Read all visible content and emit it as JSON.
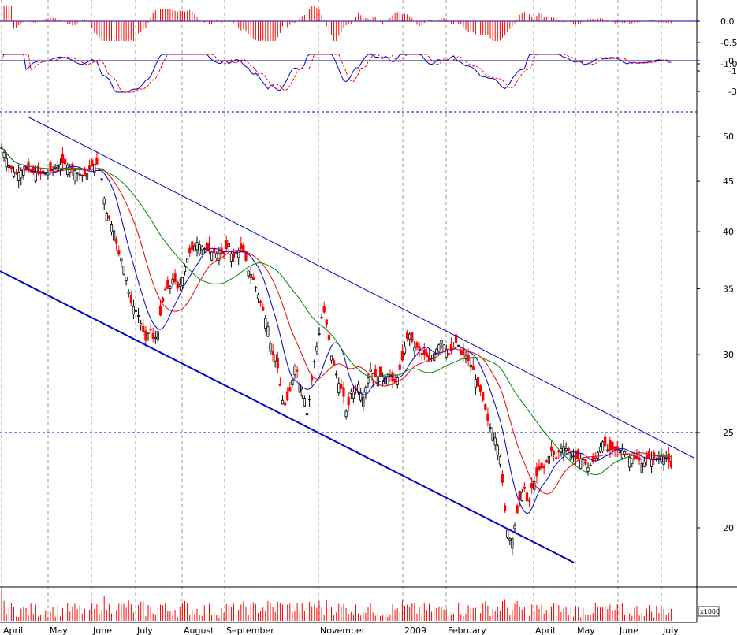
{
  "chart_data": {
    "type": "candlestick",
    "colors": {
      "up": "#000000",
      "down": "#ff0000",
      "ma_fast": "#0000cc",
      "ma_mid": "#ee0000",
      "ma_slow": "#008800",
      "channel": "#0000cc",
      "macd_line": "#0000cc",
      "signal_line": "#ff0000",
      "hist": "#ff0000",
      "volume": "#ff0000",
      "grid": "#999999"
    },
    "months": [
      "April",
      "May",
      "June",
      "July",
      "August",
      "September",
      "November",
      "2009",
      "February",
      "April",
      "May",
      "June",
      "July"
    ],
    "price_axis": {
      "scale": "log",
      "ticks": [
        "50",
        "45",
        "40",
        "35",
        "30",
        "25",
        "20"
      ],
      "range": [
        17,
        53
      ]
    },
    "ind1_axis": {
      "ticks": [
        "0.0",
        "-0.5",
        "-1.0"
      ]
    },
    "ind2_axis": {
      "ticks": [
        "0",
        "-1",
        "-3"
      ]
    },
    "volume_axis": {
      "label": "x1000"
    },
    "horizontal_levels": [
      25,
      52
    ],
    "price_control_points": [
      [
        0,
        49
      ],
      [
        6,
        48
      ],
      [
        12,
        46.5
      ],
      [
        20,
        45.8
      ],
      [
        30,
        46.3
      ],
      [
        40,
        46
      ],
      [
        50,
        45.8
      ],
      [
        60,
        45.8
      ],
      [
        70,
        46.5
      ],
      [
        80,
        47
      ],
      [
        90,
        46.5
      ],
      [
        100,
        45.8
      ],
      [
        108,
        45.5
      ],
      [
        115,
        46.5
      ],
      [
        122,
        47
      ],
      [
        128,
        46
      ],
      [
        134,
        42
      ],
      [
        140,
        41
      ],
      [
        145,
        40
      ],
      [
        150,
        38
      ],
      [
        155,
        37.5
      ],
      [
        160,
        36
      ],
      [
        165,
        34
      ],
      [
        170,
        33.5
      ],
      [
        175,
        33
      ],
      [
        180,
        32
      ],
      [
        185,
        31
      ],
      [
        190,
        32
      ],
      [
        195,
        31
      ],
      [
        200,
        31.5
      ],
      [
        205,
        33.5
      ],
      [
        210,
        35
      ],
      [
        215,
        35
      ],
      [
        220,
        36
      ],
      [
        225,
        35
      ],
      [
        230,
        35.5
      ],
      [
        235,
        37
      ],
      [
        240,
        38
      ],
      [
        245,
        38.5
      ],
      [
        250,
        39
      ],
      [
        258,
        38.5
      ],
      [
        265,
        38.2
      ],
      [
        275,
        38
      ],
      [
        285,
        38
      ],
      [
        290,
        39
      ],
      [
        295,
        37.5
      ],
      [
        300,
        38
      ],
      [
        305,
        38.5
      ],
      [
        310,
        38
      ],
      [
        315,
        36.5
      ],
      [
        320,
        36
      ],
      [
        325,
        35
      ],
      [
        330,
        34
      ],
      [
        335,
        33
      ],
      [
        340,
        32
      ],
      [
        345,
        30
      ],
      [
        350,
        30
      ],
      [
        355,
        28
      ],
      [
        360,
        26.5
      ],
      [
        365,
        27
      ],
      [
        370,
        28
      ],
      [
        375,
        29.5
      ],
      [
        380,
        28
      ],
      [
        385,
        27.5
      ],
      [
        390,
        26
      ],
      [
        395,
        28
      ],
      [
        400,
        30
      ],
      [
        405,
        31.5
      ],
      [
        410,
        33.5
      ],
      [
        415,
        32
      ],
      [
        420,
        30
      ],
      [
        425,
        29
      ],
      [
        430,
        28
      ],
      [
        435,
        27.5
      ],
      [
        440,
        26
      ],
      [
        445,
        27.5
      ],
      [
        450,
        27.5
      ],
      [
        455,
        28
      ],
      [
        460,
        27
      ],
      [
        465,
        28
      ],
      [
        470,
        29
      ],
      [
        475,
        28.5
      ],
      [
        480,
        28.5
      ],
      [
        485,
        28.5
      ],
      [
        490,
        28.5
      ],
      [
        495,
        28.5
      ],
      [
        500,
        28
      ],
      [
        505,
        28.5
      ],
      [
        510,
        29.5
      ],
      [
        515,
        31
      ],
      [
        520,
        31.5
      ],
      [
        525,
        30.5
      ],
      [
        530,
        30.5
      ],
      [
        535,
        30
      ],
      [
        540,
        30
      ],
      [
        545,
        29.5
      ],
      [
        550,
        30
      ],
      [
        555,
        30.5
      ],
      [
        560,
        31
      ],
      [
        565,
        30.5
      ],
      [
        570,
        30
      ],
      [
        575,
        30.5
      ],
      [
        580,
        31
      ],
      [
        585,
        30
      ],
      [
        590,
        30
      ],
      [
        595,
        29.5
      ],
      [
        600,
        29
      ],
      [
        605,
        28
      ],
      [
        610,
        27.5
      ],
      [
        615,
        26.5
      ],
      [
        620,
        25.5
      ],
      [
        625,
        25
      ],
      [
        630,
        24.5
      ],
      [
        635,
        23.5
      ],
      [
        640,
        21
      ],
      [
        645,
        19.5
      ],
      [
        650,
        19.5
      ],
      [
        655,
        20.5
      ],
      [
        660,
        21.5
      ],
      [
        665,
        22
      ],
      [
        670,
        21
      ],
      [
        675,
        22
      ],
      [
        680,
        22.5
      ],
      [
        685,
        23
      ],
      [
        690,
        23
      ],
      [
        695,
        23.5
      ],
      [
        700,
        24
      ],
      [
        705,
        23.5
      ],
      [
        710,
        24
      ],
      [
        715,
        24.2
      ],
      [
        720,
        24
      ],
      [
        725,
        23.8
      ],
      [
        730,
        23.5
      ],
      [
        735,
        23.5
      ],
      [
        740,
        23.5
      ],
      [
        745,
        23
      ],
      [
        750,
        23.2
      ],
      [
        755,
        23.5
      ],
      [
        760,
        24
      ],
      [
        765,
        24.5
      ],
      [
        770,
        24
      ],
      [
        775,
        24
      ],
      [
        780,
        24
      ],
      [
        785,
        24
      ],
      [
        790,
        24
      ],
      [
        795,
        23.8
      ],
      [
        800,
        23.5
      ],
      [
        805,
        23.5
      ],
      [
        810,
        23.5
      ],
      [
        815,
        23.2
      ],
      [
        820,
        23.5
      ],
      [
        825,
        23.5
      ],
      [
        830,
        23.5
      ],
      [
        835,
        23.5
      ],
      [
        840,
        23.8
      ],
      [
        845,
        23.6
      ],
      [
        850,
        23.2
      ],
      [
        852,
        23
      ]
    ]
  }
}
